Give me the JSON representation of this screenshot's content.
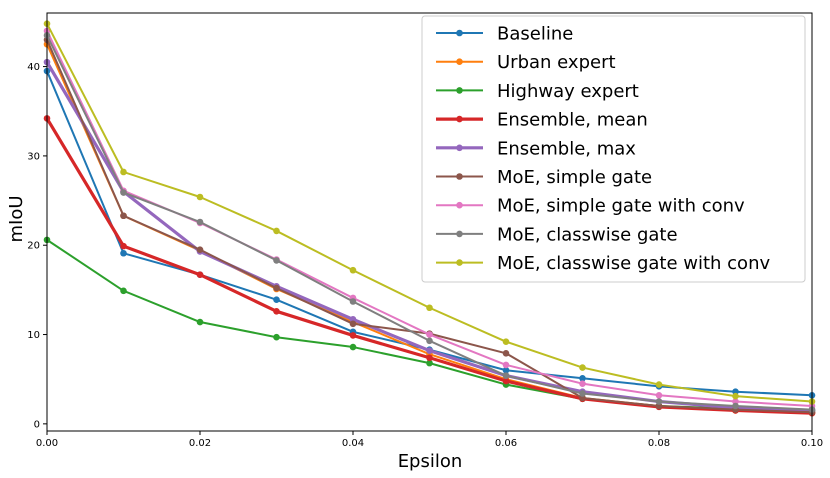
{
  "chart_data": {
    "type": "line",
    "title": "",
    "xlabel": "Epsilon",
    "ylabel": "mIoU",
    "xlim": [
      0.0,
      0.1
    ],
    "ylim": [
      -0.8,
      46.0
    ],
    "x": [
      0.0,
      0.01,
      0.02,
      0.03,
      0.04,
      0.05,
      0.06,
      0.07,
      0.08,
      0.09,
      0.1
    ],
    "x_tick_labels": [
      "0.00",
      "0.02",
      "0.04",
      "0.06",
      "0.08",
      "0.10"
    ],
    "x_ticks": [
      0.0,
      0.02,
      0.04,
      0.06,
      0.08,
      0.1
    ],
    "y_tick_labels": [
      "0",
      "10",
      "20",
      "30",
      "40"
    ],
    "y_ticks": [
      0,
      10,
      20,
      30,
      40
    ],
    "grid": false,
    "legend_position": "top-right",
    "series": [
      {
        "name": "Baseline",
        "color": "#1f77b4",
        "width": 2,
        "values": [
          39.5,
          19.1,
          16.7,
          13.9,
          10.3,
          8.3,
          6.0,
          5.1,
          4.2,
          3.6,
          3.2
        ]
      },
      {
        "name": "Urban expert",
        "color": "#ff7f0e",
        "width": 2,
        "values": [
          42.5,
          23.3,
          19.4,
          15.1,
          11.4,
          7.8,
          5.0,
          2.9,
          2.0,
          1.5,
          1.2
        ]
      },
      {
        "name": "Highway expert",
        "color": "#2ca02c",
        "width": 2,
        "values": [
          20.6,
          14.9,
          11.4,
          9.7,
          8.6,
          6.8,
          4.4,
          2.8,
          2.0,
          1.7,
          1.5
        ]
      },
      {
        "name": "Ensemble, mean",
        "color": "#d62728",
        "width": 3.2,
        "values": [
          34.2,
          19.9,
          16.7,
          12.6,
          9.9,
          7.4,
          4.8,
          2.8,
          1.9,
          1.5,
          1.2
        ]
      },
      {
        "name": "Ensemble, max",
        "color": "#9467bd",
        "width": 3.2,
        "values": [
          40.5,
          26.0,
          19.3,
          15.4,
          11.7,
          8.2,
          5.4,
          3.6,
          2.5,
          1.8,
          1.5
        ]
      },
      {
        "name": "MoE, simple gate",
        "color": "#8c564b",
        "width": 2,
        "values": [
          43.0,
          23.3,
          19.5,
          15.2,
          11.2,
          10.1,
          7.9,
          2.9,
          2.0,
          1.6,
          1.3
        ]
      },
      {
        "name": "MoE, simple gate with conv",
        "color": "#e377c2",
        "width": 2,
        "values": [
          44.0,
          26.1,
          22.5,
          18.4,
          14.1,
          10.0,
          6.6,
          4.5,
          3.2,
          2.5,
          2.0
        ]
      },
      {
        "name": "MoE, classwise gate",
        "color": "#7f7f7f",
        "width": 2,
        "values": [
          43.5,
          25.9,
          22.6,
          18.3,
          13.7,
          9.3,
          5.4,
          3.4,
          2.5,
          2.0,
          1.6
        ]
      },
      {
        "name": "MoE, classwise gate with conv",
        "color": "#bcbd22",
        "width": 2,
        "values": [
          44.8,
          28.2,
          25.4,
          21.6,
          17.2,
          13.0,
          9.2,
          6.3,
          4.4,
          3.1,
          2.5
        ]
      }
    ]
  }
}
